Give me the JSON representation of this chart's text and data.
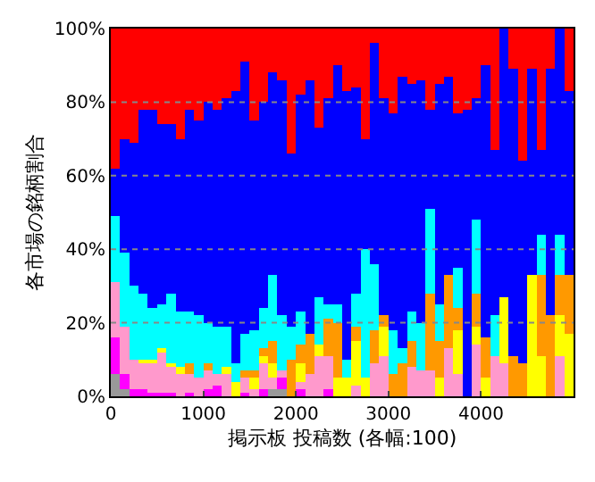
{
  "chart_data": {
    "type": "bar",
    "stacked": true,
    "xlabel": "掲示板 投稿数 (各幅:100)",
    "ylabel": "各市場の銘柄割合",
    "x": [
      50,
      150,
      250,
      350,
      450,
      550,
      650,
      750,
      850,
      950,
      1050,
      1150,
      1250,
      1350,
      1450,
      1550,
      1650,
      1750,
      1850,
      1950,
      2050,
      2150,
      2250,
      2350,
      2450,
      2550,
      2650,
      2750,
      2850,
      2950,
      3050,
      3150,
      3250,
      3350,
      3450,
      3550,
      3650,
      3750,
      3850,
      3950,
      4050,
      4150,
      4250,
      4350,
      4450,
      4550,
      4650,
      4750,
      4850,
      4950
    ],
    "xlim": [
      0,
      5000
    ],
    "xticks": [
      0,
      1000,
      2000,
      3000,
      4000
    ],
    "ylim": [
      0,
      100
    ],
    "yticks": [
      {
        "value": 0,
        "label": "0%"
      },
      {
        "value": 20,
        "label": "20%"
      },
      {
        "value": 40,
        "label": "40%"
      },
      {
        "value": 60,
        "label": "60%"
      },
      {
        "value": 80,
        "label": "80%"
      },
      {
        "value": 100,
        "label": "100%"
      }
    ],
    "grid": "y",
    "series": [
      {
        "color": "#999999",
        "values": [
          6,
          2,
          0,
          0,
          0,
          0,
          0,
          0,
          0,
          0,
          0,
          0,
          0,
          0,
          0,
          0,
          0,
          2,
          2,
          0,
          0,
          0,
          0,
          0,
          0,
          0,
          0,
          0,
          0,
          0,
          0,
          0,
          0,
          0,
          0,
          0,
          0,
          0,
          0,
          0,
          0,
          0,
          0,
          0,
          0,
          0,
          0,
          0,
          0,
          0
        ]
      },
      {
        "color": "#ff00ff",
        "values": [
          10,
          4,
          2,
          2,
          1,
          1,
          1,
          0,
          1,
          0,
          2,
          3,
          0,
          0,
          1,
          0,
          2,
          0,
          3,
          0,
          2,
          0,
          0,
          2,
          0,
          0,
          0,
          0,
          0,
          0,
          0,
          0,
          0,
          0,
          0,
          0,
          0,
          0,
          0,
          0,
          0,
          0,
          0,
          0,
          0,
          0,
          0,
          0,
          0,
          0
        ]
      },
      {
        "color": "#ff99cc",
        "values": [
          15,
          13,
          8,
          7,
          8,
          11,
          7,
          6,
          5,
          5,
          5,
          3,
          6,
          0,
          4,
          2,
          7,
          3,
          2,
          0,
          2,
          6,
          11,
          9,
          0,
          0,
          3,
          0,
          9,
          11,
          0,
          0,
          8,
          7,
          7,
          0,
          13,
          6,
          0,
          14,
          0,
          11,
          9,
          0,
          0,
          0,
          0,
          0,
          11,
          0
        ]
      },
      {
        "color": "#ffff00",
        "values": [
          0,
          0,
          0,
          1,
          1,
          1,
          1,
          2,
          0,
          0,
          0,
          0,
          2,
          4,
          0,
          3,
          2,
          4,
          0,
          0,
          5,
          0,
          3,
          0,
          5,
          5,
          12,
          5,
          0,
          8,
          0,
          0,
          0,
          0,
          0,
          5,
          0,
          12,
          0,
          5,
          5,
          0,
          18,
          0,
          0,
          33,
          11,
          0,
          11,
          17
        ]
      },
      {
        "color": "#ff9900",
        "values": [
          0,
          0,
          0,
          0,
          0,
          0,
          0,
          0,
          3,
          0,
          2,
          0,
          0,
          0,
          2,
          2,
          2,
          6,
          0,
          10,
          5,
          11,
          0,
          10,
          15,
          0,
          4,
          0,
          9,
          3,
          6,
          9,
          7,
          0,
          21,
          10,
          20,
          6,
          0,
          9,
          11,
          0,
          0,
          11,
          9,
          0,
          22,
          22,
          11,
          16
        ]
      },
      {
        "color": "#00ffff",
        "values": [
          18,
          20,
          20,
          18,
          14,
          12,
          19,
          15,
          14,
          17,
          11,
          13,
          11,
          5,
          10,
          11,
          11,
          18,
          15,
          9,
          9,
          0,
          13,
          4,
          5,
          5,
          9,
          35,
          18,
          0,
          12,
          4,
          8,
          13,
          23,
          10,
          0,
          11,
          0,
          20,
          0,
          11,
          0,
          0,
          0,
          0,
          11,
          0,
          11,
          0
        ]
      },
      {
        "color": "#0000ff",
        "values": [
          13,
          31,
          39,
          50,
          54,
          49,
          46,
          47,
          55,
          53,
          60,
          59,
          62,
          74,
          74,
          57,
          56,
          55,
          64,
          47,
          59,
          69,
          46,
          56,
          65,
          73,
          56,
          30,
          60,
          59,
          59,
          74,
          62,
          66,
          27,
          60,
          54,
          42,
          78,
          33,
          74,
          45,
          73,
          78,
          55,
          56,
          23,
          67,
          56,
          50
        ]
      },
      {
        "color": "#ff0000",
        "values": [
          38,
          30,
          31,
          22,
          22,
          26,
          26,
          30,
          22,
          25,
          20,
          22,
          19,
          17,
          9,
          25,
          20,
          12,
          14,
          34,
          18,
          14,
          27,
          19,
          10,
          17,
          16,
          30,
          4,
          19,
          23,
          13,
          15,
          14,
          22,
          15,
          13,
          23,
          22,
          19,
          10,
          33,
          0,
          11,
          36,
          11,
          33,
          11,
          0,
          17
        ]
      }
    ]
  }
}
